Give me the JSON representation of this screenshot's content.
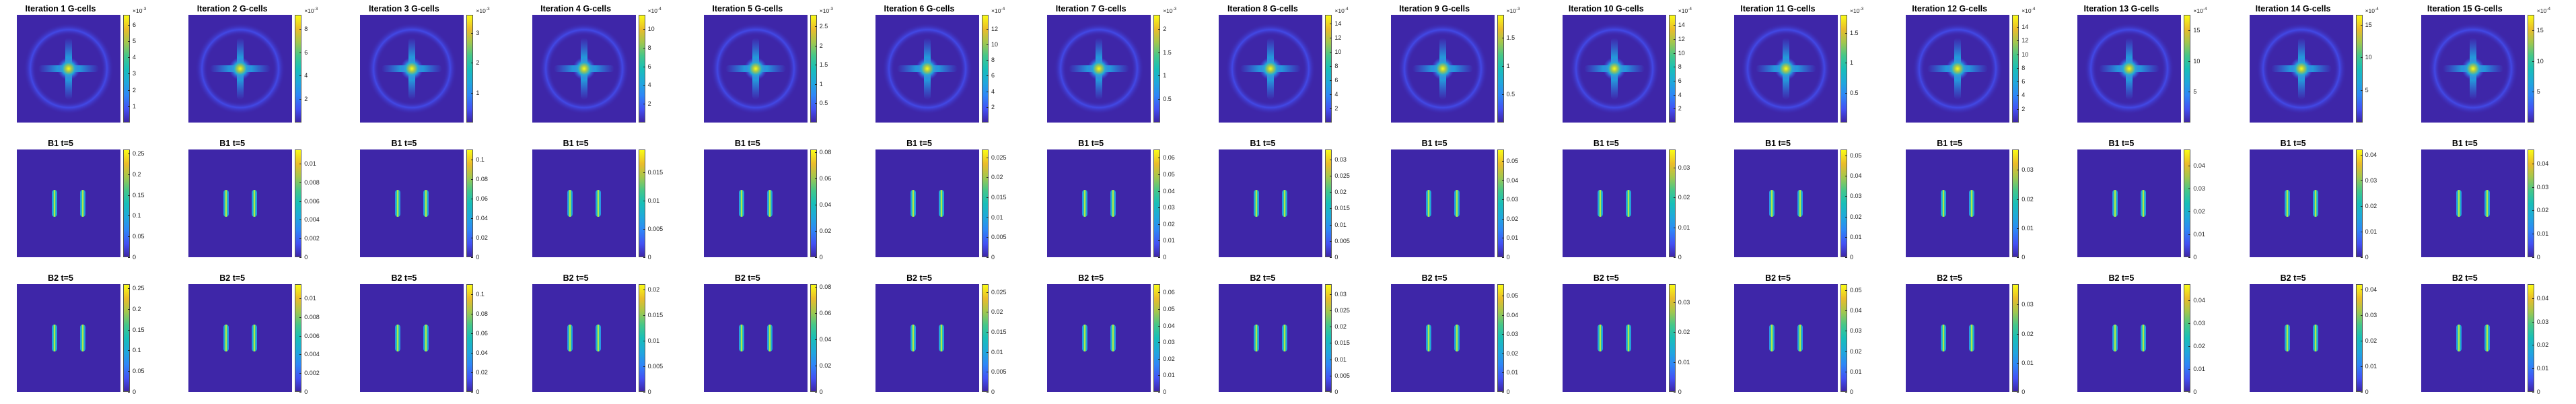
{
  "figure": {
    "rows": [
      "gcells",
      "b1",
      "b2"
    ],
    "colormap": "parula",
    "colormap_stops": [
      "#3e26a8",
      "#4351f4",
      "#2e87f7",
      "#1fa8dc",
      "#18bfb8",
      "#44c78a",
      "#a5c74c",
      "#eabc2a",
      "#f9fb15"
    ],
    "background_color": "#3e26a8"
  },
  "panels": [
    {
      "gcells": {
        "title": "Iteration 1 G-cells",
        "exp": "10",
        "exp_power": "-3",
        "ticks": [
          "1",
          "2",
          "3",
          "4",
          "5",
          "6"
        ],
        "max": 6.6
      },
      "b1": {
        "title": "B1 t=5",
        "exp": "",
        "exp_power": "",
        "ticks": [
          "0",
          "0.05",
          "0.1",
          "0.15",
          "0.2",
          "0.25"
        ],
        "max": 0.26
      },
      "b2": {
        "title": "B2 t=5",
        "exp": "",
        "exp_power": "",
        "ticks": [
          "0",
          "0.05",
          "0.1",
          "0.15",
          "0.2",
          "0.25"
        ],
        "max": 0.26
      }
    },
    {
      "gcells": {
        "title": "Iteration 2 G-cells",
        "exp": "10",
        "exp_power": "-3",
        "ticks": [
          "2",
          "4",
          "6",
          "8"
        ],
        "max": 9.2
      },
      "b1": {
        "title": "B1 t=5",
        "exp": "",
        "exp_power": "",
        "ticks": [
          "0",
          "0.002",
          "0.004",
          "0.006",
          "0.008",
          "0.01"
        ],
        "max": 0.0115
      },
      "b2": {
        "title": "B2 t=5",
        "exp": "",
        "exp_power": "",
        "ticks": [
          "0",
          "0.002",
          "0.004",
          "0.006",
          "0.008",
          "0.01"
        ],
        "max": 0.0115
      }
    },
    {
      "gcells": {
        "title": "Iteration 3 G-cells",
        "exp": "10",
        "exp_power": "-3",
        "ticks": [
          "1",
          "2",
          "3"
        ],
        "max": 3.6
      },
      "b1": {
        "title": "B1 t=5",
        "exp": "",
        "exp_power": "",
        "ticks": [
          "0",
          "0.02",
          "0.04",
          "0.06",
          "0.08",
          "0.1"
        ],
        "max": 0.11
      },
      "b2": {
        "title": "B2 t=5",
        "exp": "",
        "exp_power": "",
        "ticks": [
          "0",
          "0.02",
          "0.04",
          "0.06",
          "0.08",
          "0.1"
        ],
        "max": 0.11
      }
    },
    {
      "gcells": {
        "title": "Iteration 4 G-cells",
        "exp": "10",
        "exp_power": "-4",
        "ticks": [
          "2",
          "4",
          "6",
          "8",
          "10"
        ],
        "max": 11.5
      },
      "b1": {
        "title": "B1 t=5",
        "exp": "",
        "exp_power": "",
        "ticks": [
          "0",
          "0.005",
          "0.01",
          "0.015"
        ],
        "max": 0.019
      },
      "b2": {
        "title": "B2 t=5",
        "exp": "",
        "exp_power": "",
        "ticks": [
          "0",
          "0.005",
          "0.01",
          "0.015",
          "0.02"
        ],
        "max": 0.021
      }
    },
    {
      "gcells": {
        "title": "Iteration 5 G-cells",
        "exp": "10",
        "exp_power": "-3",
        "ticks": [
          "0.5",
          "1",
          "1.5",
          "2",
          "2.5"
        ],
        "max": 2.8
      },
      "b1": {
        "title": "B1 t=5",
        "exp": "",
        "exp_power": "",
        "ticks": [
          "0",
          "0.02",
          "0.04",
          "0.06",
          "0.08"
        ],
        "max": 0.082
      },
      "b2": {
        "title": "B2 t=5",
        "exp": "",
        "exp_power": "",
        "ticks": [
          "0",
          "0.02",
          "0.04",
          "0.06",
          "0.08"
        ],
        "max": 0.082
      }
    },
    {
      "gcells": {
        "title": "Iteration 6 G-cells",
        "exp": "10",
        "exp_power": "-4",
        "ticks": [
          "2",
          "4",
          "6",
          "8",
          "10",
          "12"
        ],
        "max": 13.8
      },
      "b1": {
        "title": "B1 t=5",
        "exp": "",
        "exp_power": "",
        "ticks": [
          "0",
          "0.005",
          "0.01",
          "0.015",
          "0.02",
          "0.025"
        ],
        "max": 0.027
      },
      "b2": {
        "title": "B2 t=5",
        "exp": "",
        "exp_power": "",
        "ticks": [
          "0",
          "0.005",
          "0.01",
          "0.015",
          "0.02",
          "0.025"
        ],
        "max": 0.027
      }
    },
    {
      "gcells": {
        "title": "Iteration 7 G-cells",
        "exp": "10",
        "exp_power": "-3",
        "ticks": [
          "0.5",
          "1",
          "1.5",
          "2"
        ],
        "max": 2.3
      },
      "b1": {
        "title": "B1 t=5",
        "exp": "",
        "exp_power": "",
        "ticks": [
          "0",
          "0.01",
          "0.02",
          "0.03",
          "0.04",
          "0.05",
          "0.06"
        ],
        "max": 0.065
      },
      "b2": {
        "title": "B2 t=5",
        "exp": "",
        "exp_power": "",
        "ticks": [
          "0",
          "0.01",
          "0.02",
          "0.03",
          "0.04",
          "0.05",
          "0.06"
        ],
        "max": 0.065
      }
    },
    {
      "gcells": {
        "title": "Iteration 8 G-cells",
        "exp": "10",
        "exp_power": "-4",
        "ticks": [
          "2",
          "4",
          "6",
          "8",
          "10",
          "12",
          "14"
        ],
        "max": 15.2
      },
      "b1": {
        "title": "B1 t=5",
        "exp": "",
        "exp_power": "",
        "ticks": [
          "0",
          "0.005",
          "0.01",
          "0.015",
          "0.02",
          "0.025",
          "0.03"
        ],
        "max": 0.033
      },
      "b2": {
        "title": "B2 t=5",
        "exp": "",
        "exp_power": "",
        "ticks": [
          "0",
          "0.005",
          "0.01",
          "0.015",
          "0.02",
          "0.025",
          "0.03"
        ],
        "max": 0.033
      }
    },
    {
      "gcells": {
        "title": "Iteration 9 G-cells",
        "exp": "10",
        "exp_power": "-3",
        "ticks": [
          "0.5",
          "1",
          "1.5"
        ],
        "max": 1.9
      },
      "b1": {
        "title": "B1 t=5",
        "exp": "",
        "exp_power": "",
        "ticks": [
          "0",
          "0.01",
          "0.02",
          "0.03",
          "0.04",
          "0.05"
        ],
        "max": 0.056
      },
      "b2": {
        "title": "B2 t=5",
        "exp": "",
        "exp_power": "",
        "ticks": [
          "0",
          "0.01",
          "0.02",
          "0.03",
          "0.04",
          "0.05"
        ],
        "max": 0.056
      }
    },
    {
      "gcells": {
        "title": "Iteration 10 G-cells",
        "exp": "10",
        "exp_power": "-4",
        "ticks": [
          "2",
          "4",
          "6",
          "8",
          "10",
          "12",
          "14"
        ],
        "max": 15.5
      },
      "b1": {
        "title": "B1 t=5",
        "exp": "",
        "exp_power": "",
        "ticks": [
          "0",
          "0.01",
          "0.02",
          "0.03"
        ],
        "max": 0.036
      },
      "b2": {
        "title": "B2 t=5",
        "exp": "",
        "exp_power": "",
        "ticks": [
          "0",
          "0.01",
          "0.02",
          "0.03"
        ],
        "max": 0.036
      }
    },
    {
      "gcells": {
        "title": "Iteration 11 G-cells",
        "exp": "10",
        "exp_power": "-3",
        "ticks": [
          "0.5",
          "1",
          "1.5"
        ],
        "max": 1.8
      },
      "b1": {
        "title": "B1 t=5",
        "exp": "",
        "exp_power": "",
        "ticks": [
          "0",
          "0.01",
          "0.02",
          "0.03",
          "0.04",
          "0.05"
        ],
        "max": 0.053
      },
      "b2": {
        "title": "B2 t=5",
        "exp": "",
        "exp_power": "",
        "ticks": [
          "0",
          "0.01",
          "0.02",
          "0.03",
          "0.04",
          "0.05"
        ],
        "max": 0.053
      }
    },
    {
      "gcells": {
        "title": "Iteration 12 G-cells",
        "exp": "10",
        "exp_power": "-4",
        "ticks": [
          "2",
          "4",
          "6",
          "8",
          "10",
          "12",
          "14"
        ],
        "max": 15.8
      },
      "b1": {
        "title": "B1 t=5",
        "exp": "",
        "exp_power": "",
        "ticks": [
          "0",
          "0.01",
          "0.02",
          "0.03"
        ],
        "max": 0.037
      },
      "b2": {
        "title": "B2 t=5",
        "exp": "",
        "exp_power": "",
        "ticks": [
          "0",
          "0.01",
          "0.02",
          "0.03"
        ],
        "max": 0.037
      }
    },
    {
      "gcells": {
        "title": "Iteration 13 G-cells",
        "exp": "10",
        "exp_power": "-4",
        "ticks": [
          "5",
          "10",
          "15"
        ],
        "max": 17.5
      },
      "b1": {
        "title": "B1 t=5",
        "exp": "",
        "exp_power": "",
        "ticks": [
          "0",
          "0.01",
          "0.02",
          "0.03",
          "0.04"
        ],
        "max": 0.047
      },
      "b2": {
        "title": "B2 t=5",
        "exp": "",
        "exp_power": "",
        "ticks": [
          "0",
          "0.01",
          "0.02",
          "0.03",
          "0.04"
        ],
        "max": 0.047
      }
    },
    {
      "gcells": {
        "title": "Iteration 14 G-cells",
        "exp": "10",
        "exp_power": "-4",
        "ticks": [
          "5",
          "10",
          "15"
        ],
        "max": 16.5
      },
      "b1": {
        "title": "B1 t=5",
        "exp": "",
        "exp_power": "",
        "ticks": [
          "0",
          "0.01",
          "0.02",
          "0.03",
          "0.04"
        ],
        "max": 0.042
      },
      "b2": {
        "title": "B2 t=5",
        "exp": "",
        "exp_power": "",
        "ticks": [
          "0",
          "0.01",
          "0.02",
          "0.03",
          "0.04"
        ],
        "max": 0.042
      }
    },
    {
      "gcells": {
        "title": "Iteration 15 G-cells",
        "exp": "10",
        "exp_power": "-4",
        "ticks": [
          "5",
          "10",
          "15"
        ],
        "max": 17.5
      },
      "b1": {
        "title": "B1 t=5",
        "exp": "",
        "exp_power": "",
        "ticks": [
          "0",
          "0.01",
          "0.02",
          "0.03",
          "0.04"
        ],
        "max": 0.046
      },
      "b2": {
        "title": "B2 t=5",
        "exp": "",
        "exp_power": "",
        "ticks": [
          "0",
          "0.01",
          "0.02",
          "0.03",
          "0.04"
        ],
        "max": 0.046
      }
    }
  ],
  "chart_data": {
    "type": "heatmap",
    "layout": "3 rows x 15 columns of image panels with colorbars",
    "row_titles": [
      "Iteration N G-cells",
      "B1 t=5",
      "B2 t=5"
    ],
    "colorbar_max": {
      "gcells": [
        0.0066,
        0.0092,
        0.0036,
        0.00115,
        0.0028,
        0.00138,
        0.0023,
        0.00152,
        0.0019,
        0.00155,
        0.0018,
        0.00158,
        0.00175,
        0.00165,
        0.00175
      ],
      "b1": [
        0.26,
        0.0115,
        0.11,
        0.019,
        0.082,
        0.027,
        0.065,
        0.033,
        0.056,
        0.036,
        0.053,
        0.037,
        0.047,
        0.042,
        0.046
      ],
      "b2": [
        0.26,
        0.0115,
        0.11,
        0.021,
        0.082,
        0.027,
        0.065,
        0.033,
        0.056,
        0.036,
        0.053,
        0.037,
        0.047,
        0.042,
        0.046
      ]
    },
    "pattern": {
      "gcells": "central bright cross (plus-shaped peak) with faint rounded-square ring",
      "b1": "two vertical bright bars",
      "b2": "two vertical bright bars"
    }
  }
}
